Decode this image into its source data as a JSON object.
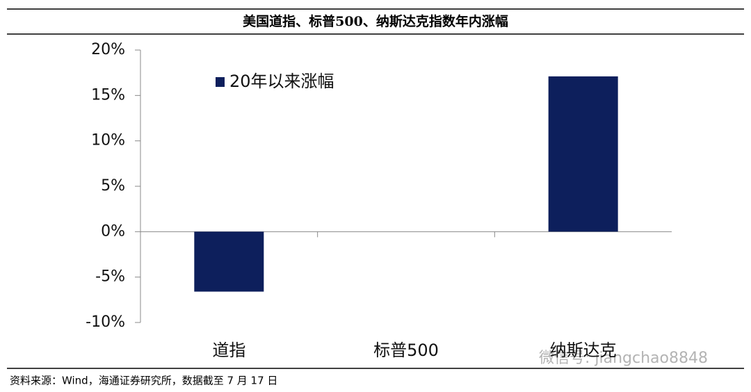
{
  "chart_data": {
    "type": "bar",
    "title": "美国道指、标普500、纳斯达克指数年内涨幅",
    "categories": [
      "道指",
      "标普500",
      "纳斯达克"
    ],
    "series": [
      {
        "name": "20年以来涨幅",
        "color": "#0d1f5c",
        "values": [
          -6.6,
          0,
          17.1
        ]
      }
    ],
    "ylim": [
      -10,
      20
    ],
    "yticks": [
      {
        "value": -10,
        "label": "-10%"
      },
      {
        "value": -5,
        "label": "-5%"
      },
      {
        "value": 0,
        "label": "0%"
      },
      {
        "value": 5,
        "label": "5%"
      },
      {
        "value": 10,
        "label": "10%"
      },
      {
        "value": 15,
        "label": "15%"
      },
      {
        "value": 20,
        "label": "20%"
      }
    ],
    "legend": "upper left",
    "source": "资料来源：Wind，海通证券研究所，数据截至 7 月 17 日",
    "watermark": "微信号: jiangchao8848"
  }
}
